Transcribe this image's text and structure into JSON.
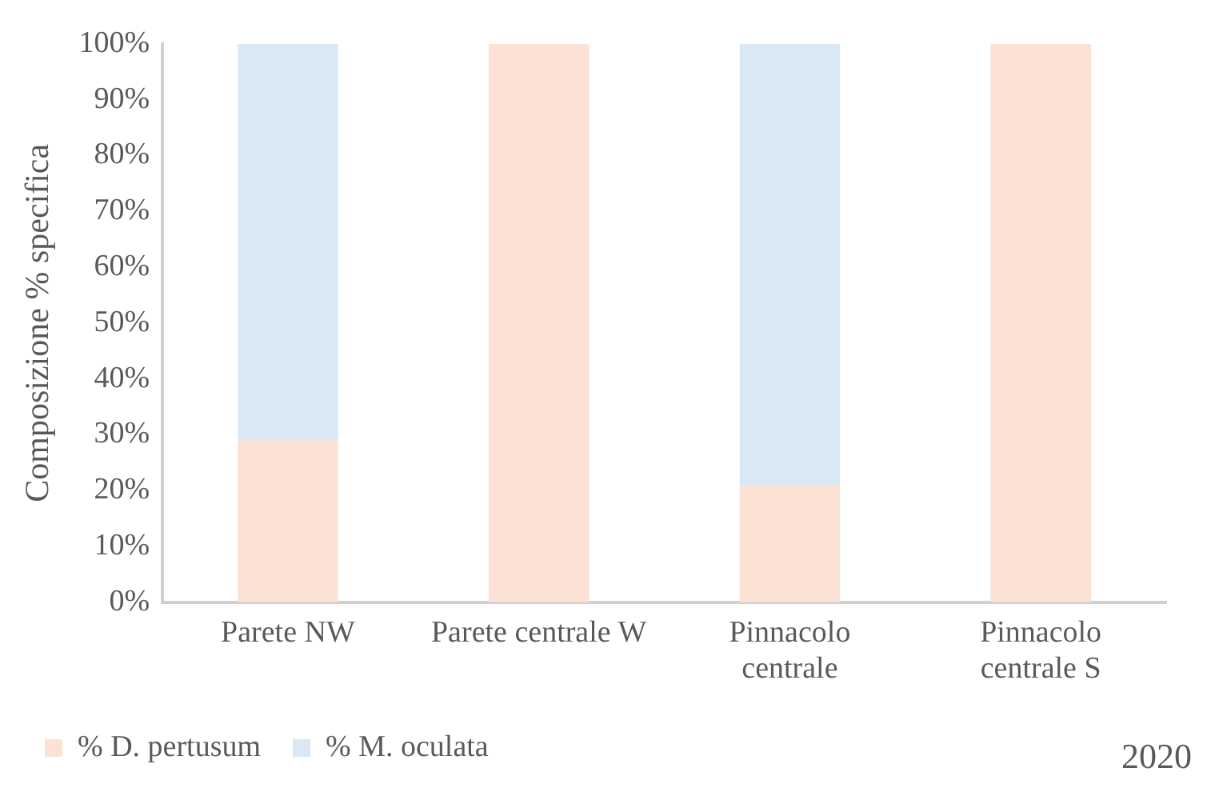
{
  "chart_data": {
    "type": "bar",
    "stacked": true,
    "ylabel": "Composizione % specifica",
    "categories": [
      "Parete NW",
      "Parete centrale W",
      "Pinnacolo centrale",
      "Pinnacolo centrale S"
    ],
    "series": [
      {
        "name": "% D. pertusum",
        "color": "#fbe2d5",
        "values": [
          29,
          100,
          21,
          100
        ]
      },
      {
        "name": "% M. oculata",
        "color": "#dae8f6",
        "values": [
          71,
          0,
          79,
          0
        ]
      }
    ],
    "ylim": [
      0,
      100
    ],
    "yticks": [
      {
        "value": 0,
        "label": "0%"
      },
      {
        "value": 10,
        "label": "10%"
      },
      {
        "value": 20,
        "label": "20%"
      },
      {
        "value": 30,
        "label": "30%"
      },
      {
        "value": 40,
        "label": "40%"
      },
      {
        "value": 50,
        "label": "50%"
      },
      {
        "value": 60,
        "label": "60%"
      },
      {
        "value": 70,
        "label": "70%"
      },
      {
        "value": 80,
        "label": "80%"
      },
      {
        "value": 90,
        "label": "90%"
      },
      {
        "value": 100,
        "label": "100%"
      }
    ],
    "grid": false,
    "legend": "bottom left",
    "annotations": [
      "2020"
    ]
  }
}
